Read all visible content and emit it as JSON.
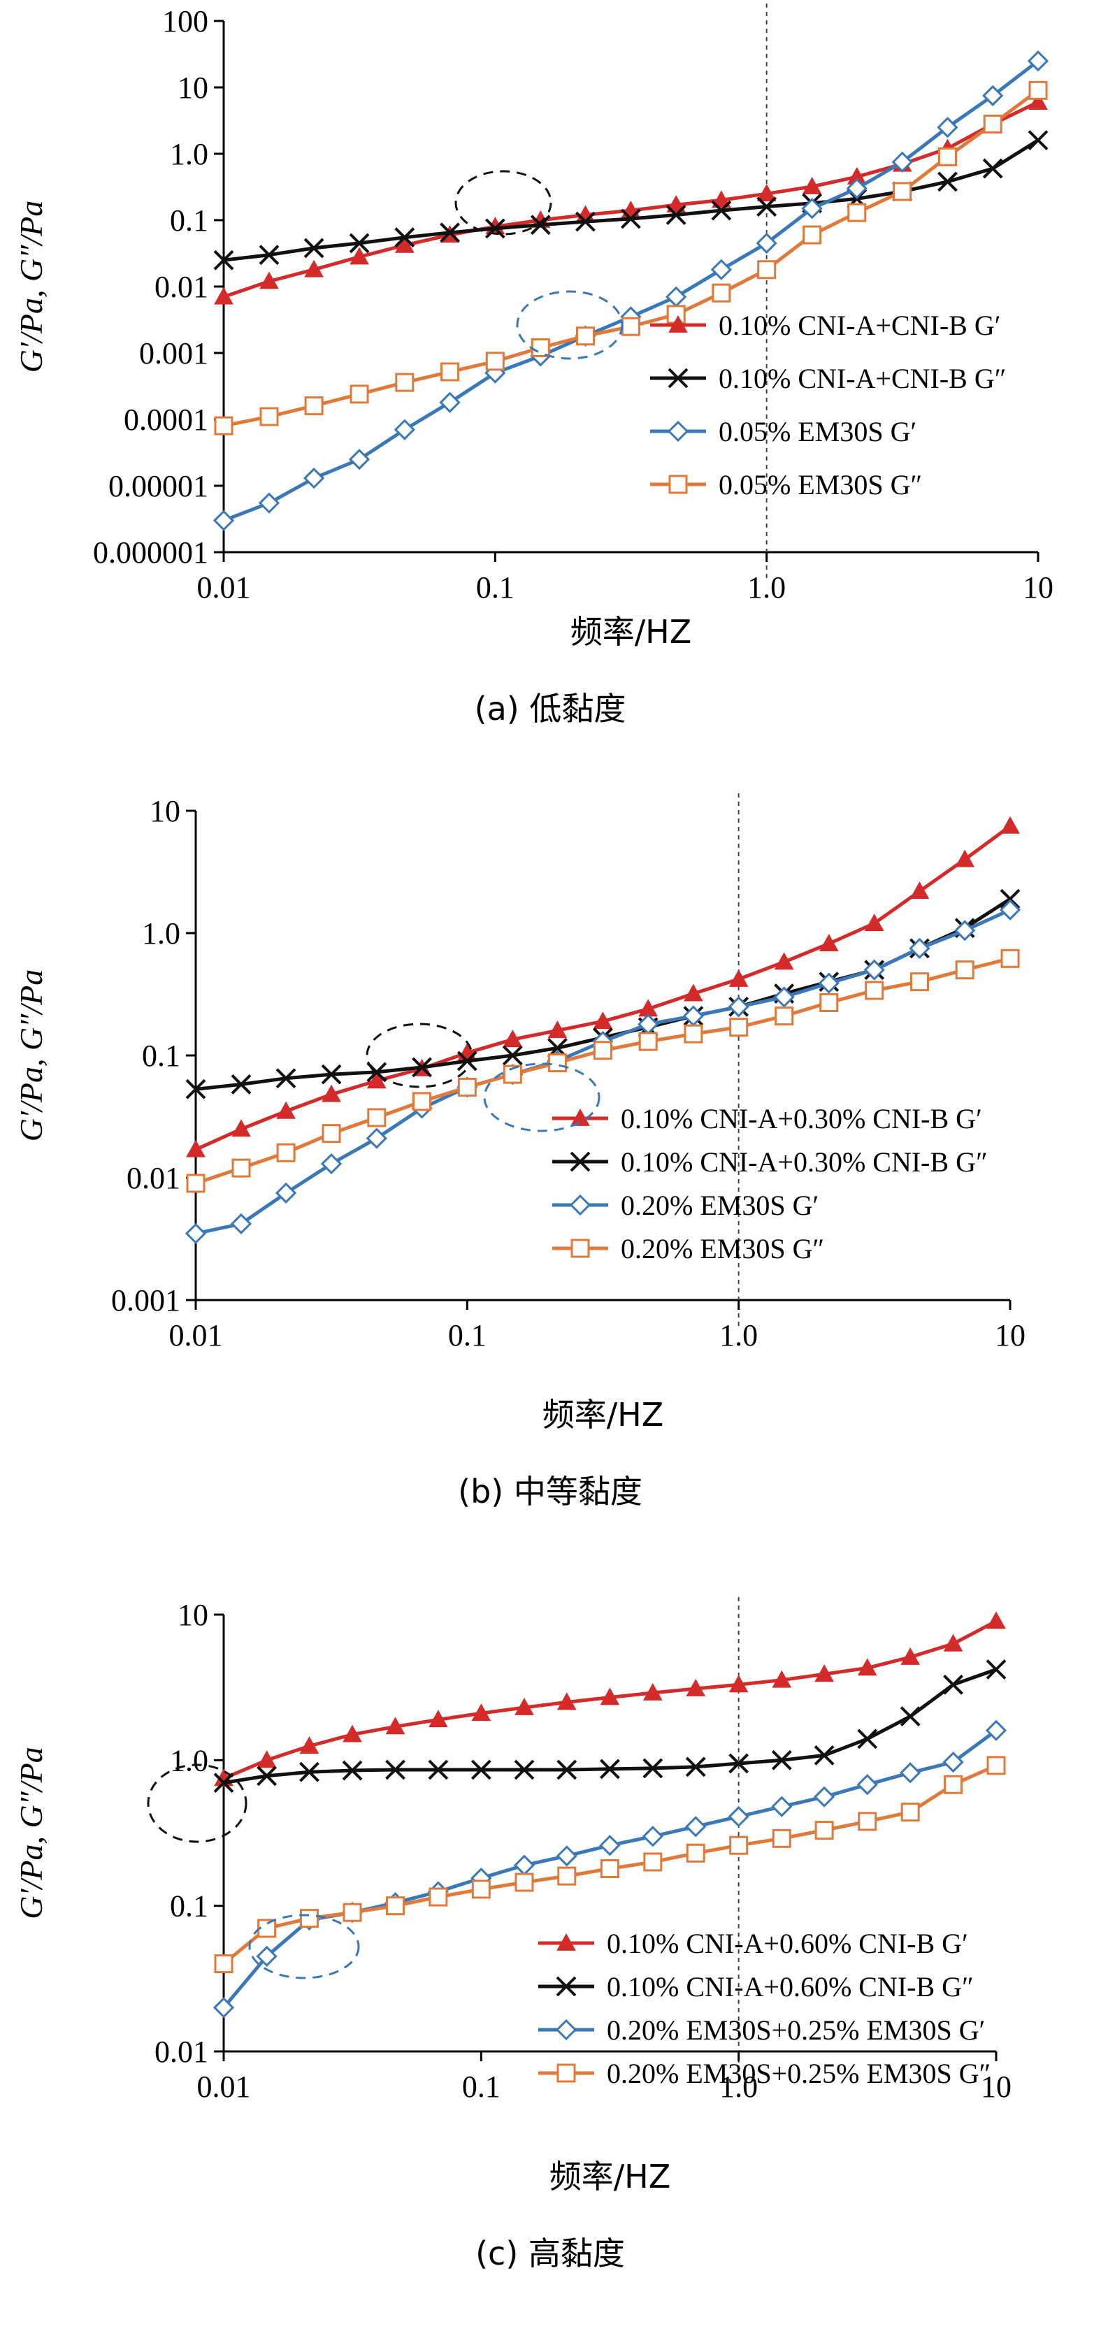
{
  "chart_data": [
    {
      "type": "line",
      "caption": "(a) 低黏度",
      "xlabel": "频率/HZ",
      "ylabel": "G′/Pa, G″/Pa",
      "xscale": "log",
      "yscale": "log",
      "xlim": [
        0.01,
        10
      ],
      "ylim": [
        1e-06,
        100
      ],
      "xticks": [
        "0.01",
        "0.1",
        "1.0",
        "10"
      ],
      "yticks": [
        "0.000001",
        "0.00001",
        "0.0001",
        "0.001",
        "0.01",
        "0.1",
        "1.0",
        "10",
        "100"
      ],
      "legend_position": "bottom-right",
      "reference_line_x": 1.0,
      "series": [
        {
          "name": "0.10% CNI-A+CNI-B G′",
          "color": "#d42a2a",
          "marker": "triangle",
          "x": [
            0.01,
            0.0147,
            0.0215,
            0.0316,
            0.0464,
            0.0681,
            0.1,
            0.147,
            0.215,
            0.316,
            0.464,
            0.681,
            1.0,
            1.47,
            2.15,
            3.16,
            4.64,
            6.81,
            10
          ],
          "y": [
            0.007,
            0.012,
            0.018,
            0.028,
            0.042,
            0.06,
            0.08,
            0.1,
            0.12,
            0.14,
            0.17,
            0.2,
            0.25,
            0.32,
            0.45,
            0.7,
            1.2,
            2.8,
            6
          ]
        },
        {
          "name": "0.10% CNI-A+CNI-B G″",
          "color": "#111111",
          "marker": "x",
          "x": [
            0.01,
            0.0147,
            0.0215,
            0.0316,
            0.0464,
            0.0681,
            0.1,
            0.147,
            0.215,
            0.316,
            0.464,
            0.681,
            1.0,
            1.47,
            2.15,
            3.16,
            4.64,
            6.81,
            10
          ],
          "y": [
            0.025,
            0.03,
            0.038,
            0.045,
            0.055,
            0.065,
            0.075,
            0.085,
            0.095,
            0.105,
            0.12,
            0.14,
            0.16,
            0.18,
            0.21,
            0.27,
            0.38,
            0.6,
            1.6
          ]
        },
        {
          "name": "0.05% EM30S G′",
          "color": "#3a78b8",
          "marker": "diamond",
          "x": [
            0.01,
            0.0147,
            0.0215,
            0.0316,
            0.0464,
            0.0681,
            0.1,
            0.147,
            0.215,
            0.316,
            0.464,
            0.681,
            1.0,
            1.47,
            2.15,
            3.16,
            4.64,
            6.81,
            10
          ],
          "y": [
            3e-06,
            5.5e-06,
            1.3e-05,
            2.5e-05,
            7e-05,
            0.00018,
            0.0005,
            0.0009,
            0.0018,
            0.0035,
            0.007,
            0.018,
            0.045,
            0.15,
            0.3,
            0.75,
            2.5,
            7.5,
            25
          ]
        },
        {
          "name": "0.05% EM30S G″",
          "color": "#e07a3a",
          "marker": "square",
          "x": [
            0.01,
            0.0147,
            0.0215,
            0.0316,
            0.0464,
            0.0681,
            0.1,
            0.147,
            0.215,
            0.316,
            0.464,
            0.681,
            1.0,
            1.47,
            2.15,
            3.16,
            4.64,
            6.81,
            10
          ],
          "y": [
            8e-05,
            0.00011,
            0.00016,
            0.00024,
            0.00036,
            0.00052,
            0.00075,
            0.0012,
            0.0018,
            0.0025,
            0.0038,
            0.008,
            0.018,
            0.06,
            0.13,
            0.27,
            0.9,
            2.8,
            9
          ]
        }
      ]
    },
    {
      "type": "line",
      "caption": "(b) 中等黏度",
      "xlabel": "频率/HZ",
      "ylabel": "G′/Pa, G″/Pa",
      "xscale": "log",
      "yscale": "log",
      "xlim": [
        0.01,
        10
      ],
      "ylim": [
        0.001,
        10
      ],
      "xticks": [
        "0.01",
        "0.1",
        "1.0",
        "10"
      ],
      "yticks": [
        "0.001",
        "0.01",
        "0.1",
        "1.0",
        "10"
      ],
      "legend_position": "bottom-right",
      "reference_line_x": 1.0,
      "series": [
        {
          "name": "0.10% CNI-A+0.30% CNI-B G′",
          "color": "#d42a2a",
          "marker": "triangle",
          "x": [
            0.01,
            0.0147,
            0.0215,
            0.0316,
            0.0464,
            0.0681,
            0.1,
            0.147,
            0.215,
            0.316,
            0.464,
            0.681,
            1.0,
            1.47,
            2.15,
            3.16,
            4.64,
            6.81,
            10
          ],
          "y": [
            0.017,
            0.025,
            0.035,
            0.048,
            0.062,
            0.078,
            0.105,
            0.135,
            0.16,
            0.19,
            0.24,
            0.32,
            0.42,
            0.58,
            0.82,
            1.2,
            2.2,
            4,
            7.5
          ]
        },
        {
          "name": "0.10% CNI-A+0.30% CNI-B G″",
          "color": "#111111",
          "marker": "x",
          "x": [
            0.01,
            0.0147,
            0.0215,
            0.0316,
            0.0464,
            0.0681,
            0.1,
            0.147,
            0.215,
            0.316,
            0.464,
            0.681,
            1.0,
            1.47,
            2.15,
            3.16,
            4.64,
            6.81,
            10
          ],
          "y": [
            0.053,
            0.058,
            0.065,
            0.07,
            0.073,
            0.08,
            0.09,
            0.1,
            0.115,
            0.14,
            0.17,
            0.21,
            0.25,
            0.32,
            0.4,
            0.5,
            0.75,
            1.1,
            1.9
          ]
        },
        {
          "name": "0.20% EM30S G′",
          "color": "#3a78b8",
          "marker": "diamond",
          "x": [
            0.01,
            0.0147,
            0.0215,
            0.0316,
            0.0464,
            0.0681,
            0.1,
            0.147,
            0.215,
            0.316,
            0.464,
            0.681,
            1.0,
            1.47,
            2.15,
            3.16,
            4.64,
            6.81,
            10
          ],
          "y": [
            0.0035,
            0.0042,
            0.0075,
            0.013,
            0.021,
            0.037,
            0.055,
            0.07,
            0.09,
            0.13,
            0.18,
            0.21,
            0.25,
            0.3,
            0.39,
            0.5,
            0.75,
            1.05,
            1.55
          ]
        },
        {
          "name": "0.20% EM30S G″",
          "color": "#e07a3a",
          "marker": "square",
          "x": [
            0.01,
            0.0147,
            0.0215,
            0.0316,
            0.0464,
            0.0681,
            0.1,
            0.147,
            0.215,
            0.316,
            0.464,
            0.681,
            1.0,
            1.47,
            2.15,
            3.16,
            4.64,
            6.81,
            10
          ],
          "y": [
            0.009,
            0.012,
            0.016,
            0.023,
            0.031,
            0.042,
            0.055,
            0.07,
            0.087,
            0.11,
            0.13,
            0.15,
            0.17,
            0.21,
            0.27,
            0.34,
            0.4,
            0.5,
            0.62
          ]
        }
      ]
    },
    {
      "type": "line",
      "caption": "(c) 高黏度",
      "xlabel": "频率/HZ",
      "ylabel": "G′/Pa, G″/Pa",
      "xscale": "log",
      "yscale": "log",
      "xlim": [
        0.01,
        10
      ],
      "ylim": [
        0.01,
        10
      ],
      "xticks": [
        "0.01",
        "0.1",
        "1.0",
        "10"
      ],
      "yticks": [
        "0.01",
        "0.1",
        "1.0",
        "10"
      ],
      "legend_position": "bottom-right",
      "reference_line_x": 1.0,
      "series": [
        {
          "name": "0.10% CNI-A+0.60% CNI-B G′",
          "color": "#d42a2a",
          "marker": "triangle",
          "x": [
            0.01,
            0.0147,
            0.0215,
            0.0316,
            0.0464,
            0.0681,
            0.1,
            0.147,
            0.215,
            0.316,
            0.464,
            0.681,
            1.0,
            1.47,
            2.15,
            3.16,
            4.64,
            6.81,
            10
          ],
          "y": [
            0.75,
            1.0,
            1.25,
            1.5,
            1.7,
            1.9,
            2.1,
            2.3,
            2.5,
            2.7,
            2.9,
            3.1,
            3.3,
            3.55,
            3.9,
            4.3,
            5.1,
            6.3,
            9
          ]
        },
        {
          "name": "0.10% CNI-A+0.60% CNI-B G″",
          "color": "#111111",
          "marker": "x",
          "x": [
            0.01,
            0.0147,
            0.0215,
            0.0316,
            0.0464,
            0.0681,
            0.1,
            0.147,
            0.215,
            0.316,
            0.464,
            0.681,
            1.0,
            1.47,
            2.15,
            3.16,
            4.64,
            6.81,
            10
          ],
          "y": [
            0.7,
            0.78,
            0.83,
            0.85,
            0.86,
            0.86,
            0.86,
            0.86,
            0.86,
            0.87,
            0.88,
            0.9,
            0.95,
            1.0,
            1.08,
            1.4,
            2.0,
            3.3,
            4.2
          ]
        },
        {
          "name": "0.20% EM30S+0.25% EM30S G′",
          "color": "#3a78b8",
          "marker": "diamond",
          "x": [
            0.01,
            0.0147,
            0.0215,
            0.0316,
            0.0464,
            0.0681,
            0.1,
            0.147,
            0.215,
            0.316,
            0.464,
            0.681,
            1.0,
            1.47,
            2.15,
            3.16,
            4.64,
            6.81,
            10
          ],
          "y": [
            0.02,
            0.045,
            0.08,
            0.09,
            0.105,
            0.125,
            0.155,
            0.19,
            0.22,
            0.26,
            0.3,
            0.35,
            0.41,
            0.48,
            0.56,
            0.68,
            0.82,
            0.97,
            1.6
          ]
        },
        {
          "name": "0.20% EM30S+0.25% EM30S G″",
          "color": "#e07a3a",
          "marker": "square",
          "x": [
            0.01,
            0.0147,
            0.0215,
            0.0316,
            0.0464,
            0.0681,
            0.1,
            0.147,
            0.215,
            0.316,
            0.464,
            0.681,
            1.0,
            1.47,
            2.15,
            3.16,
            4.64,
            6.81,
            10
          ],
          "y": [
            0.04,
            0.07,
            0.082,
            0.09,
            0.1,
            0.115,
            0.13,
            0.145,
            0.16,
            0.18,
            0.2,
            0.23,
            0.26,
            0.29,
            0.33,
            0.38,
            0.44,
            0.68,
            0.92
          ]
        }
      ]
    }
  ]
}
